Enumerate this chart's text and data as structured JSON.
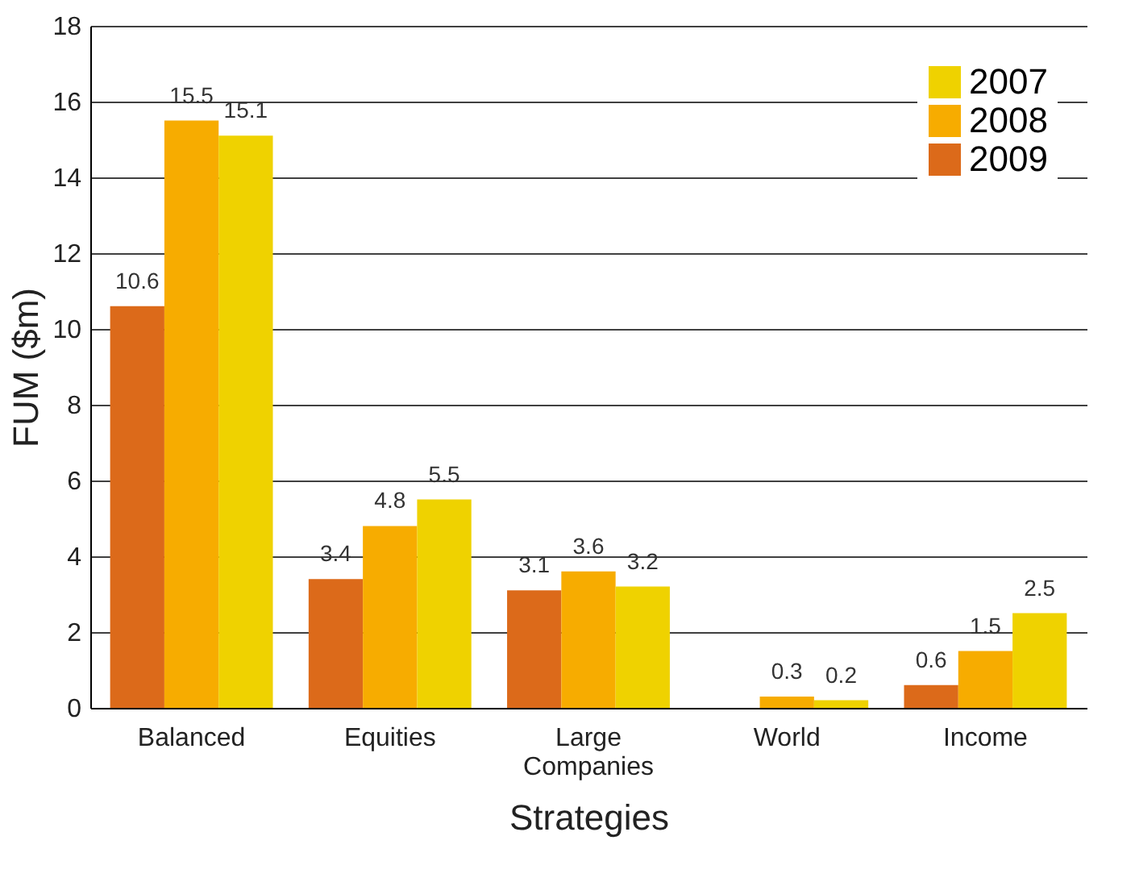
{
  "chart_data": {
    "type": "bar",
    "xlabel": "Strategies",
    "ylabel": "FUM ($m)",
    "categories": [
      "Balanced",
      "Equities",
      "Large Companies",
      "World",
      "Income"
    ],
    "series": [
      {
        "name": "2009",
        "color": "#dc6a1a",
        "values": [
          10.6,
          3.4,
          3.1,
          null,
          0.6
        ]
      },
      {
        "name": "2008",
        "color": "#f7ac00",
        "values": [
          15.5,
          4.8,
          3.6,
          0.3,
          1.5
        ]
      },
      {
        "name": "2007",
        "color": "#efd200",
        "values": [
          15.1,
          5.5,
          3.2,
          0.2,
          2.5
        ]
      }
    ],
    "ylim": [
      0,
      18
    ],
    "yticks": [
      0,
      2,
      4,
      6,
      8,
      10,
      12,
      14,
      16,
      18
    ],
    "grid": "y",
    "legend": "top right",
    "data_labels": true
  }
}
